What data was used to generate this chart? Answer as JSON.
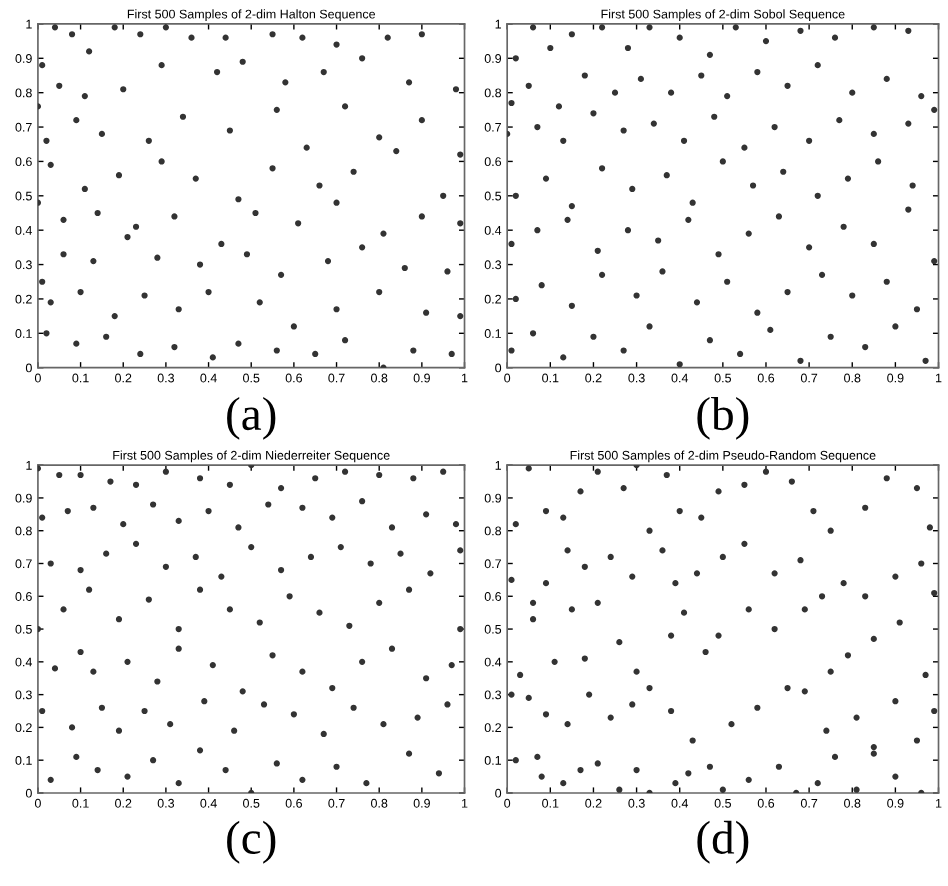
{
  "chart_data": [
    {
      "type": "scatter",
      "title": "First 500 Samples of 2-dim Halton Sequence",
      "annotations": [
        "(a)"
      ],
      "xlim": [
        0,
        1
      ],
      "ylim": [
        0,
        1
      ],
      "xticks": [
        0,
        0.1,
        0.2,
        0.3,
        0.4,
        0.5,
        0.6,
        0.7,
        0.8,
        0.9,
        1
      ],
      "yticks": [
        0,
        0.1,
        0.2,
        0.3,
        0.4,
        0.5,
        0.6,
        0.7,
        0.8,
        0.9,
        1
      ],
      "marker": "circle",
      "grid": false,
      "series": [
        {
          "color": "#333333",
          "x": [
            0.01,
            0.04,
            0.08,
            0.12,
            0.18,
            0.24,
            0.3,
            0.36,
            0.44,
            0.55,
            0.62,
            0.7,
            0.82,
            0.9,
            0.0,
            0.05,
            0.11,
            0.2,
            0.29,
            0.42,
            0.48,
            0.58,
            0.67,
            0.76,
            0.87,
            0.98,
            0.02,
            0.09,
            0.15,
            0.26,
            0.34,
            0.45,
            0.56,
            0.63,
            0.72,
            0.8,
            0.9,
            0.99,
            0.03,
            0.11,
            0.19,
            0.29,
            0.37,
            0.47,
            0.55,
            0.66,
            0.74,
            0.84,
            0.95,
            0.0,
            0.06,
            0.14,
            0.23,
            0.32,
            0.43,
            0.51,
            0.61,
            0.7,
            0.81,
            0.9,
            0.99,
            0.01,
            0.06,
            0.13,
            0.21,
            0.28,
            0.38,
            0.49,
            0.57,
            0.68,
            0.76,
            0.86,
            0.96,
            0.03,
            0.1,
            0.18,
            0.25,
            0.33,
            0.4,
            0.52,
            0.6,
            0.7,
            0.8,
            0.91,
            0.99,
            0.02,
            0.09,
            0.16,
            0.24,
            0.32,
            0.41,
            0.47,
            0.56,
            0.65,
            0.72,
            0.81,
            0.88,
            0.97
          ],
          "values": [
            0.88,
            0.99,
            0.97,
            0.92,
            0.99,
            0.97,
            0.99,
            0.96,
            0.96,
            0.97,
            0.96,
            0.94,
            0.96,
            0.97,
            0.76,
            0.82,
            0.79,
            0.81,
            0.88,
            0.86,
            0.89,
            0.83,
            0.86,
            0.9,
            0.83,
            0.81,
            0.66,
            0.72,
            0.68,
            0.66,
            0.73,
            0.69,
            0.75,
            0.64,
            0.76,
            0.67,
            0.72,
            0.62,
            0.59,
            0.52,
            0.56,
            0.6,
            0.55,
            0.49,
            0.58,
            0.53,
            0.57,
            0.63,
            0.5,
            0.48,
            0.43,
            0.45,
            0.41,
            0.44,
            0.36,
            0.45,
            0.42,
            0.48,
            0.39,
            0.44,
            0.42,
            0.25,
            0.33,
            0.31,
            0.38,
            0.32,
            0.3,
            0.33,
            0.27,
            0.31,
            0.35,
            0.29,
            0.28,
            0.19,
            0.22,
            0.15,
            0.21,
            0.17,
            0.22,
            0.19,
            0.12,
            0.17,
            0.22,
            0.16,
            0.15,
            0.1,
            0.07,
            0.09,
            0.04,
            0.06,
            0.03,
            0.07,
            0.05,
            0.04,
            0.08,
            0.0,
            0.05,
            0.04
          ]
        }
      ]
    },
    {
      "type": "scatter",
      "title": "First 500 Samples of 2-dim Sobol Sequence",
      "annotations": [
        "(b)"
      ],
      "xlim": [
        0,
        1
      ],
      "ylim": [
        0,
        1
      ],
      "xticks": [
        0,
        0.1,
        0.2,
        0.3,
        0.4,
        0.5,
        0.6,
        0.7,
        0.8,
        0.9,
        1
      ],
      "yticks": [
        0,
        0.1,
        0.2,
        0.3,
        0.4,
        0.5,
        0.6,
        0.7,
        0.8,
        0.9,
        1
      ],
      "marker": "circle",
      "grid": false,
      "series": [
        {
          "color": "#333333",
          "x": [
            0.02,
            0.06,
            0.1,
            0.15,
            0.22,
            0.28,
            0.33,
            0.4,
            0.47,
            0.53,
            0.6,
            0.68,
            0.76,
            0.85,
            0.93,
            0.01,
            0.05,
            0.12,
            0.18,
            0.25,
            0.31,
            0.38,
            0.45,
            0.51,
            0.58,
            0.65,
            0.72,
            0.8,
            0.88,
            0.96,
            0.0,
            0.07,
            0.13,
            0.2,
            0.27,
            0.34,
            0.41,
            0.48,
            0.55,
            0.62,
            0.7,
            0.77,
            0.85,
            0.93,
            0.99,
            0.02,
            0.09,
            0.15,
            0.22,
            0.29,
            0.37,
            0.43,
            0.5,
            0.57,
            0.64,
            0.72,
            0.79,
            0.86,
            0.94,
            0.01,
            0.07,
            0.14,
            0.21,
            0.28,
            0.35,
            0.42,
            0.49,
            0.56,
            0.63,
            0.7,
            0.78,
            0.85,
            0.93,
            0.99,
            0.02,
            0.08,
            0.15,
            0.22,
            0.3,
            0.36,
            0.44,
            0.51,
            0.58,
            0.65,
            0.73,
            0.8,
            0.88,
            0.95,
            0.01,
            0.06,
            0.13,
            0.2,
            0.27,
            0.33,
            0.4,
            0.47,
            0.54,
            0.61,
            0.68,
            0.75,
            0.83,
            0.9,
            0.97
          ],
          "values": [
            0.9,
            0.99,
            0.93,
            0.97,
            0.99,
            0.93,
            0.99,
            0.96,
            0.91,
            0.99,
            0.95,
            0.98,
            0.96,
            0.99,
            0.98,
            0.77,
            0.82,
            0.76,
            0.85,
            0.8,
            0.84,
            0.8,
            0.85,
            0.79,
            0.86,
            0.82,
            0.88,
            0.8,
            0.84,
            0.79,
            0.68,
            0.7,
            0.66,
            0.74,
            0.69,
            0.71,
            0.66,
            0.73,
            0.64,
            0.7,
            0.66,
            0.72,
            0.68,
            0.71,
            0.75,
            0.5,
            0.55,
            0.47,
            0.58,
            0.52,
            0.56,
            0.48,
            0.6,
            0.53,
            0.57,
            0.5,
            0.55,
            0.6,
            0.53,
            0.36,
            0.4,
            0.43,
            0.34,
            0.4,
            0.37,
            0.43,
            0.33,
            0.39,
            0.44,
            0.35,
            0.41,
            0.36,
            0.46,
            0.31,
            0.2,
            0.24,
            0.18,
            0.27,
            0.21,
            0.28,
            0.19,
            0.25,
            0.16,
            0.22,
            0.27,
            0.21,
            0.25,
            0.17,
            0.05,
            0.1,
            0.03,
            0.09,
            0.05,
            0.12,
            0.01,
            0.08,
            0.04,
            0.11,
            0.02,
            0.09,
            0.06,
            0.12,
            0.02
          ]
        }
      ]
    },
    {
      "type": "scatter",
      "title": "First 500 Samples of 2-dim Niederreiter Sequence",
      "annotations": [
        "(c)"
      ],
      "xlim": [
        0,
        1
      ],
      "ylim": [
        0,
        1
      ],
      "xticks": [
        0,
        0.1,
        0.2,
        0.3,
        0.4,
        0.5,
        0.6,
        0.7,
        0.8,
        0.9,
        1
      ],
      "yticks": [
        0,
        0.1,
        0.2,
        0.3,
        0.4,
        0.5,
        0.6,
        0.7,
        0.8,
        0.9,
        1
      ],
      "marker": "circle",
      "grid": false,
      "series": [
        {
          "color": "#333333",
          "x": [
            0.0,
            0.05,
            0.1,
            0.17,
            0.23,
            0.3,
            0.38,
            0.45,
            0.5,
            0.57,
            0.65,
            0.72,
            0.8,
            0.88,
            0.95,
            0.01,
            0.07,
            0.13,
            0.2,
            0.27,
            0.33,
            0.4,
            0.47,
            0.54,
            0.62,
            0.69,
            0.76,
            0.83,
            0.91,
            0.98,
            0.03,
            0.1,
            0.16,
            0.23,
            0.3,
            0.37,
            0.43,
            0.5,
            0.57,
            0.64,
            0.71,
            0.78,
            0.85,
            0.92,
            0.99,
            0.0,
            0.06,
            0.12,
            0.19,
            0.26,
            0.33,
            0.38,
            0.45,
            0.52,
            0.59,
            0.66,
            0.73,
            0.8,
            0.87,
            0.99,
            0.04,
            0.1,
            0.13,
            0.21,
            0.28,
            0.33,
            0.41,
            0.48,
            0.55,
            0.62,
            0.69,
            0.76,
            0.83,
            0.91,
            0.97,
            0.01,
            0.08,
            0.15,
            0.19,
            0.25,
            0.31,
            0.39,
            0.46,
            0.53,
            0.6,
            0.67,
            0.74,
            0.81,
            0.89,
            0.96,
            0.03,
            0.09,
            0.14,
            0.21,
            0.27,
            0.33,
            0.38,
            0.44,
            0.5,
            0.56,
            0.62,
            0.7,
            0.77,
            0.87,
            0.94
          ],
          "values": [
            0.99,
            0.97,
            0.97,
            0.95,
            0.94,
            0.98,
            0.96,
            0.94,
            1.0,
            0.93,
            0.96,
            0.98,
            0.97,
            0.96,
            0.98,
            0.84,
            0.86,
            0.87,
            0.82,
            0.88,
            0.83,
            0.86,
            0.81,
            0.88,
            0.87,
            0.84,
            0.89,
            0.81,
            0.85,
            0.82,
            0.7,
            0.68,
            0.73,
            0.76,
            0.69,
            0.72,
            0.66,
            0.75,
            0.68,
            0.72,
            0.75,
            0.7,
            0.73,
            0.67,
            0.74,
            0.5,
            0.56,
            0.62,
            0.53,
            0.59,
            0.5,
            0.62,
            0.56,
            0.52,
            0.6,
            0.55,
            0.51,
            0.58,
            0.62,
            0.5,
            0.38,
            0.43,
            0.37,
            0.4,
            0.34,
            0.44,
            0.39,
            0.31,
            0.42,
            0.37,
            0.32,
            0.4,
            0.44,
            0.35,
            0.39,
            0.25,
            0.2,
            0.26,
            0.19,
            0.25,
            0.21,
            0.28,
            0.19,
            0.27,
            0.24,
            0.18,
            0.26,
            0.21,
            0.23,
            0.27,
            0.04,
            0.11,
            0.07,
            0.05,
            0.1,
            0.03,
            0.13,
            0.07,
            0.0,
            0.09,
            0.04,
            0.08,
            0.03,
            0.12,
            0.06
          ]
        }
      ]
    },
    {
      "type": "scatter",
      "title": "First 500 Samples of 2-dim Pseudo-Random Sequence",
      "annotations": [
        "(d)"
      ],
      "xlim": [
        0,
        1
      ],
      "ylim": [
        0,
        1
      ],
      "xticks": [
        0,
        0.1,
        0.2,
        0.3,
        0.4,
        0.5,
        0.6,
        0.7,
        0.8,
        0.9,
        1
      ],
      "yticks": [
        0,
        0.1,
        0.2,
        0.3,
        0.4,
        0.5,
        0.6,
        0.7,
        0.8,
        0.9,
        1
      ],
      "marker": "circle",
      "grid": false,
      "series": [
        {
          "color": "#333333",
          "x": [
            0.02,
            0.05,
            0.09,
            0.13,
            0.17,
            0.21,
            0.27,
            0.3,
            0.33,
            0.37,
            0.4,
            0.45,
            0.49,
            0.55,
            0.6,
            0.66,
            0.71,
            0.75,
            0.83,
            0.88,
            0.95,
            0.98,
            0.01,
            0.06,
            0.09,
            0.14,
            0.18,
            0.24,
            0.29,
            0.36,
            0.39,
            0.44,
            0.5,
            0.55,
            0.62,
            0.68,
            0.73,
            0.78,
            0.83,
            0.9,
            0.96,
            0.99,
            0.03,
            0.06,
            0.11,
            0.15,
            0.18,
            0.21,
            0.26,
            0.3,
            0.38,
            0.41,
            0.46,
            0.49,
            0.56,
            0.62,
            0.69,
            0.75,
            0.79,
            0.85,
            0.91,
            0.97,
            0.01,
            0.05,
            0.09,
            0.14,
            0.19,
            0.24,
            0.29,
            0.33,
            0.38,
            0.43,
            0.52,
            0.58,
            0.65,
            0.69,
            0.74,
            0.81,
            0.85,
            0.9,
            0.95,
            0.99,
            0.02,
            0.07,
            0.08,
            0.13,
            0.17,
            0.21,
            0.26,
            0.3,
            0.33,
            0.39,
            0.42,
            0.47,
            0.5,
            0.56,
            0.63,
            0.67,
            0.72,
            0.76,
            0.81,
            0.85,
            0.9,
            0.96
          ],
          "values": [
            0.82,
            0.99,
            0.86,
            0.84,
            0.92,
            0.98,
            0.93,
            1.0,
            0.8,
            0.97,
            0.86,
            0.84,
            0.92,
            0.94,
            0.98,
            0.95,
            0.86,
            0.8,
            0.87,
            0.96,
            0.93,
            0.81,
            0.65,
            0.58,
            0.64,
            0.74,
            0.69,
            0.72,
            0.66,
            0.74,
            0.64,
            0.67,
            0.72,
            0.76,
            0.67,
            0.71,
            0.6,
            0.64,
            0.6,
            0.66,
            0.7,
            0.61,
            0.36,
            0.53,
            0.4,
            0.56,
            0.41,
            0.58,
            0.46,
            0.37,
            0.48,
            0.55,
            0.43,
            0.48,
            0.56,
            0.5,
            0.56,
            0.37,
            0.42,
            0.47,
            0.52,
            0.36,
            0.3,
            0.29,
            0.24,
            0.21,
            0.3,
            0.23,
            0.27,
            0.32,
            0.25,
            0.16,
            0.21,
            0.26,
            0.32,
            0.31,
            0.19,
            0.23,
            0.14,
            0.28,
            0.16,
            0.25,
            0.1,
            0.11,
            0.05,
            0.03,
            0.07,
            0.09,
            0.01,
            0.07,
            0.0,
            0.03,
            0.06,
            0.08,
            0.01,
            0.04,
            0.08,
            0.0,
            0.03,
            0.11,
            0.01,
            0.12,
            0.05,
            0.0
          ]
        }
      ]
    }
  ]
}
